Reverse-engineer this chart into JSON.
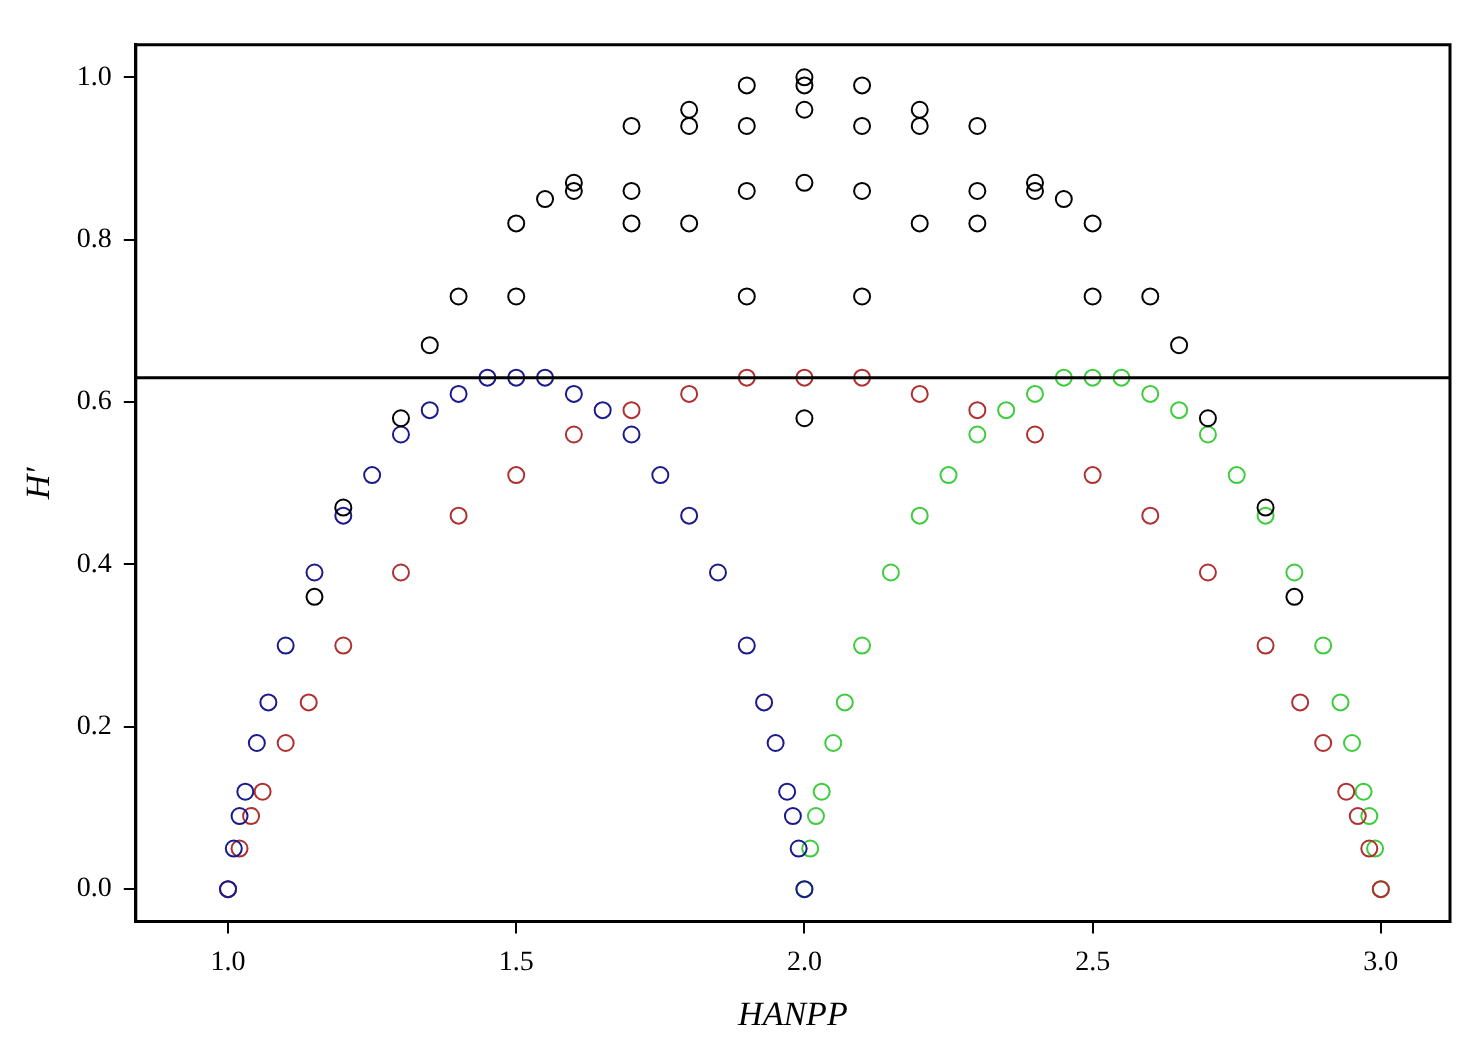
{
  "chart_data": {
    "type": "scatter",
    "xlabel": "HANPP",
    "ylabel": "H′",
    "xlim": [
      0.84,
      3.12
    ],
    "ylim": [
      -0.04,
      1.04
    ],
    "xticks": [
      {
        "value": 1,
        "label": "1.0"
      },
      1.5,
      {
        "value": 2,
        "label": "2.0"
      },
      2.5,
      {
        "value": 3,
        "label": "3.0"
      }
    ],
    "yticks": [
      {
        "value": 0,
        "label": "0.0"
      },
      0.2,
      0.4,
      0.6,
      0.8,
      {
        "value": 1,
        "label": "1.0"
      }
    ],
    "grid": false,
    "legend": false,
    "marker": "circle",
    "ref_lines": [
      {
        "axis": "y",
        "value": 0.63,
        "color": "#000000"
      }
    ],
    "series": [
      {
        "color": "#000000",
        "x": [
          2.7,
          2.6,
          2.5,
          2.4,
          2.3,
          2.2,
          2.1,
          2.0,
          2.5,
          2.4,
          2.3,
          2.2,
          2.1,
          2.0,
          1.9,
          2.3,
          2.2,
          2.1,
          2.0,
          1.9,
          1.8,
          2.1,
          2.0,
          1.9,
          1.8,
          1.7,
          1.9,
          1.8,
          1.7,
          1.6,
          1.7,
          1.6,
          1.5,
          1.5,
          1.4,
          1.3,
          2.0,
          1.2,
          1.15,
          1.35,
          1.55,
          2.85,
          2.65,
          2.45,
          2.8
        ],
        "values": [
          0.58,
          0.73,
          0.82,
          0.86,
          0.86,
          0.82,
          0.73,
          0.58,
          0.73,
          0.87,
          0.94,
          0.96,
          0.94,
          0.87,
          0.73,
          0.82,
          0.94,
          0.99,
          0.99,
          0.94,
          0.82,
          0.86,
          0.96,
          0.99,
          0.96,
          0.86,
          0.86,
          0.94,
          0.94,
          0.86,
          0.82,
          0.87,
          0.82,
          0.73,
          0.73,
          0.58,
          1.0,
          0.47,
          0.36,
          0.67,
          0.85,
          0.36,
          0.67,
          0.85,
          0.47
        ]
      },
      {
        "color": "#1a1a8c",
        "x": [
          1,
          1.01,
          1.02,
          1.03,
          1.05,
          1.07,
          1.1,
          1.15,
          1.2,
          1.25,
          1.3,
          1.35,
          1.4,
          1.45,
          1.5,
          1.55,
          1.6,
          1.65,
          1.7,
          1.75,
          1.8,
          1.85,
          1.9,
          1.93,
          1.95,
          1.97,
          1.98,
          1.99,
          2.0
        ],
        "values": [
          0,
          0.05,
          0.09,
          0.12,
          0.18,
          0.23,
          0.3,
          0.39,
          0.46,
          0.51,
          0.56,
          0.59,
          0.61,
          0.63,
          0.63,
          0.63,
          0.61,
          0.59,
          0.56,
          0.51,
          0.46,
          0.39,
          0.3,
          0.23,
          0.18,
          0.12,
          0.09,
          0.05,
          0
        ]
      },
      {
        "color": "#b03030",
        "x": [
          1,
          1.02,
          1.04,
          1.06,
          1.1,
          1.14,
          1.2,
          1.3,
          1.4,
          1.5,
          1.6,
          1.7,
          1.8,
          1.9,
          2.0,
          2.1,
          2.2,
          2.3,
          2.4,
          2.5,
          2.6,
          2.7,
          2.8,
          2.86,
          2.9,
          2.94,
          2.96,
          2.98,
          3.0
        ],
        "values": [
          0,
          0.05,
          0.09,
          0.12,
          0.18,
          0.23,
          0.3,
          0.39,
          0.46,
          0.51,
          0.56,
          0.59,
          0.61,
          0.63,
          0.63,
          0.63,
          0.61,
          0.59,
          0.56,
          0.51,
          0.46,
          0.39,
          0.3,
          0.23,
          0.18,
          0.12,
          0.09,
          0.05,
          0
        ]
      },
      {
        "color": "#3ccc3c",
        "x": [
          2,
          2.01,
          2.02,
          2.03,
          2.05,
          2.07,
          2.1,
          2.15,
          2.2,
          2.25,
          2.3,
          2.35,
          2.4,
          2.45,
          2.5,
          2.55,
          2.6,
          2.65,
          2.7,
          2.75,
          2.8,
          2.85,
          2.9,
          2.93,
          2.95,
          2.97,
          2.98,
          2.99,
          3.0
        ],
        "values": [
          0,
          0.05,
          0.09,
          0.12,
          0.18,
          0.23,
          0.3,
          0.39,
          0.46,
          0.51,
          0.56,
          0.59,
          0.61,
          0.63,
          0.63,
          0.63,
          0.61,
          0.59,
          0.56,
          0.51,
          0.46,
          0.39,
          0.3,
          0.23,
          0.18,
          0.12,
          0.09,
          0.05,
          0
        ]
      }
    ]
  }
}
